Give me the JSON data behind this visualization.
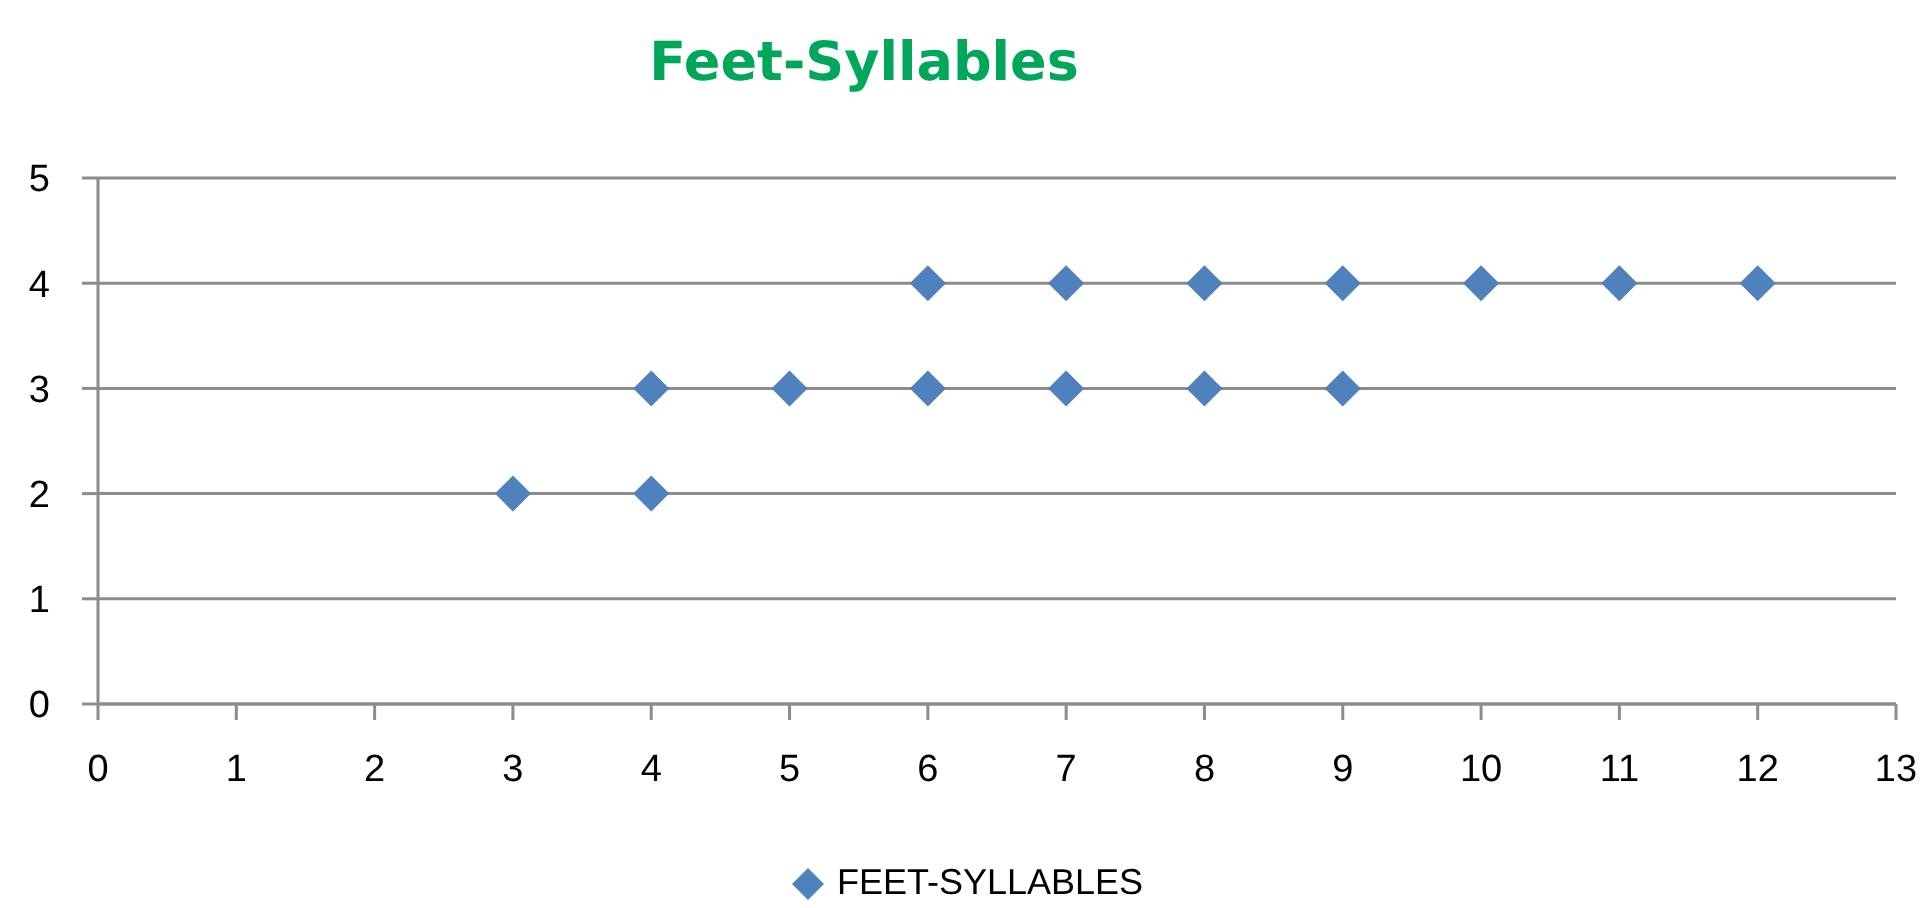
{
  "chart_data": {
    "type": "scatter",
    "title": "Feet-Syllables",
    "x": [
      3,
      4,
      4,
      5,
      6,
      6,
      7,
      7,
      8,
      8,
      9,
      9,
      10,
      11,
      12
    ],
    "series": [
      {
        "name": "FEET-SYLLABLES",
        "color": "#4f81bd",
        "values": [
          2,
          2,
          3,
          3,
          3,
          4,
          3,
          4,
          3,
          4,
          3,
          4,
          4,
          4,
          4
        ]
      }
    ],
    "xlim": [
      0,
      13
    ],
    "xticks": [
      0,
      1,
      2,
      3,
      4,
      5,
      6,
      7,
      8,
      9,
      10,
      11,
      12,
      13
    ],
    "ylim": [
      0,
      5
    ],
    "yticks": [
      0,
      1,
      2,
      3,
      4,
      5
    ],
    "grid": "y",
    "legend": "bottom",
    "marker": "diamond"
  }
}
